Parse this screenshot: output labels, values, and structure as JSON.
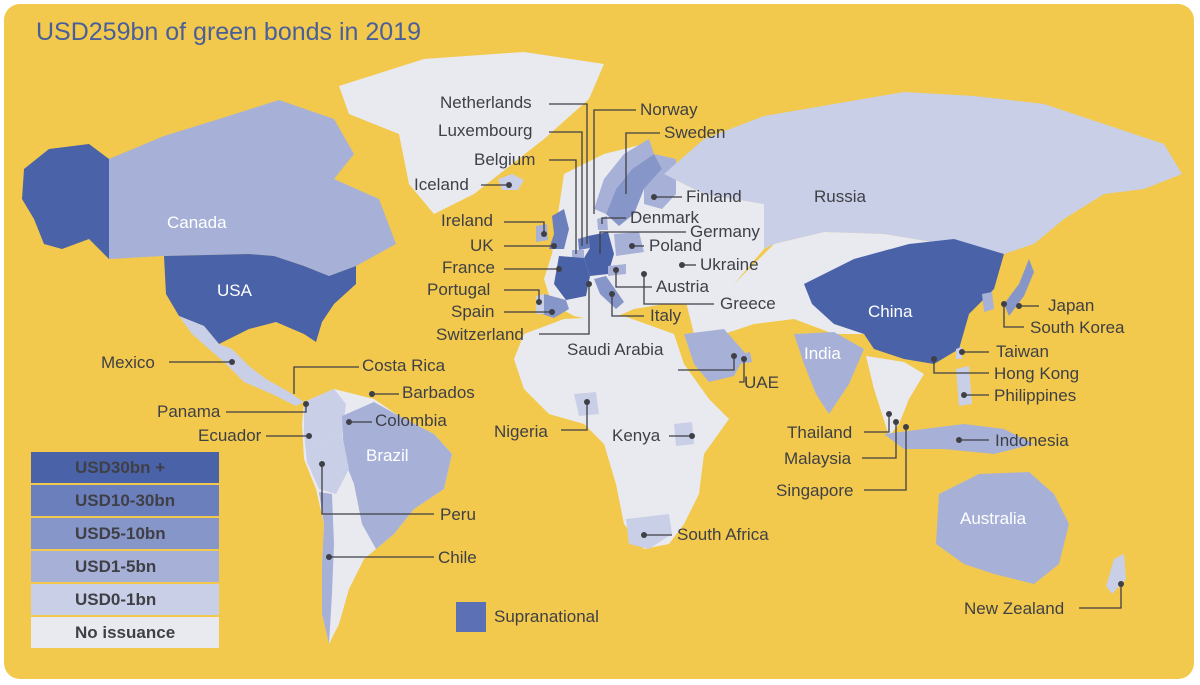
{
  "title": "USD259bn of green bonds in 2019",
  "colors": {
    "background": "#f2c94c",
    "tier_30_plus": "#4a62a8",
    "tier_10_30": "#6b7fbd",
    "tier_5_10": "#8796c9",
    "tier_1_5": "#a7b1d8",
    "tier_0_1": "#c9cfe7",
    "no_issuance": "#e9eaf0",
    "supranational": "#5c71b5"
  },
  "legend": [
    {
      "label": "USD30bn +",
      "tier": "tier_30_plus"
    },
    {
      "label": "USD10-30bn",
      "tier": "tier_10_30"
    },
    {
      "label": "USD5-10bn",
      "tier": "tier_5_10"
    },
    {
      "label": "USD1-5bn",
      "tier": "tier_1_5"
    },
    {
      "label": "USD0-1bn",
      "tier": "tier_0_1"
    },
    {
      "label": "No issuance",
      "tier": "no_issuance"
    }
  ],
  "supranational_label": "Supranational",
  "countries": [
    {
      "name": "Canada",
      "tier": "tier_1_5"
    },
    {
      "name": "USA",
      "tier": "tier_30_plus"
    },
    {
      "name": "Mexico",
      "tier": "tier_0_1"
    },
    {
      "name": "Costa Rica",
      "tier": "tier_0_1"
    },
    {
      "name": "Panama",
      "tier": "tier_0_1"
    },
    {
      "name": "Barbados",
      "tier": "tier_0_1"
    },
    {
      "name": "Colombia",
      "tier": "tier_0_1"
    },
    {
      "name": "Ecuador",
      "tier": "tier_0_1"
    },
    {
      "name": "Brazil",
      "tier": "tier_1_5"
    },
    {
      "name": "Peru",
      "tier": "tier_0_1"
    },
    {
      "name": "Chile",
      "tier": "tier_1_5"
    },
    {
      "name": "Iceland",
      "tier": "tier_0_1"
    },
    {
      "name": "Ireland",
      "tier": "tier_1_5"
    },
    {
      "name": "UK",
      "tier": "tier_10_30"
    },
    {
      "name": "France",
      "tier": "tier_30_plus"
    },
    {
      "name": "Portugal",
      "tier": "tier_0_1"
    },
    {
      "name": "Spain",
      "tier": "tier_5_10"
    },
    {
      "name": "Switzerland",
      "tier": "tier_0_1"
    },
    {
      "name": "Netherlands",
      "tier": "tier_10_30"
    },
    {
      "name": "Luxembourg",
      "tier": "tier_0_1"
    },
    {
      "name": "Belgium",
      "tier": "tier_1_5"
    },
    {
      "name": "Norway",
      "tier": "tier_1_5"
    },
    {
      "name": "Sweden",
      "tier": "tier_5_10"
    },
    {
      "name": "Finland",
      "tier": "tier_1_5"
    },
    {
      "name": "Denmark",
      "tier": "tier_1_5"
    },
    {
      "name": "Germany",
      "tier": "tier_30_plus"
    },
    {
      "name": "Poland",
      "tier": "tier_1_5"
    },
    {
      "name": "Ukraine",
      "tier": "tier_0_1"
    },
    {
      "name": "Austria",
      "tier": "tier_1_5"
    },
    {
      "name": "Greece",
      "tier": "tier_0_1"
    },
    {
      "name": "Italy",
      "tier": "tier_5_10"
    },
    {
      "name": "Russia",
      "tier": "tier_0_1"
    },
    {
      "name": "Saudi Arabia",
      "tier": "tier_1_5"
    },
    {
      "name": "UAE",
      "tier": "tier_1_5"
    },
    {
      "name": "Nigeria",
      "tier": "tier_0_1"
    },
    {
      "name": "Kenya",
      "tier": "tier_0_1"
    },
    {
      "name": "South Africa",
      "tier": "tier_0_1"
    },
    {
      "name": "India",
      "tier": "tier_1_5"
    },
    {
      "name": "China",
      "tier": "tier_30_plus"
    },
    {
      "name": "Japan",
      "tier": "tier_5_10"
    },
    {
      "name": "South Korea",
      "tier": "tier_1_5"
    },
    {
      "name": "Taiwan",
      "tier": "tier_0_1"
    },
    {
      "name": "Hong Kong",
      "tier": "tier_1_5"
    },
    {
      "name": "Philippines",
      "tier": "tier_0_1"
    },
    {
      "name": "Thailand",
      "tier": "tier_0_1"
    },
    {
      "name": "Malaysia",
      "tier": "tier_0_1"
    },
    {
      "name": "Singapore",
      "tier": "tier_1_5"
    },
    {
      "name": "Indonesia",
      "tier": "tier_1_5"
    },
    {
      "name": "Australia",
      "tier": "tier_1_5"
    },
    {
      "name": "New Zealand",
      "tier": "tier_0_1"
    }
  ]
}
